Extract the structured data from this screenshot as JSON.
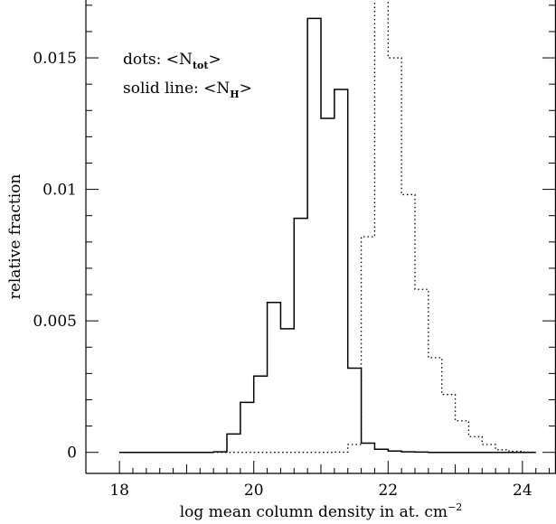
{
  "chart_data": {
    "type": "line",
    "title": "",
    "xlabel": "log mean column density in at. cm",
    "xlabel_superscript": "−2",
    "ylabel": "relative fraction",
    "xlim": [
      17.5,
      24.5
    ],
    "ylim": [
      -0.0008,
      0.0172
    ],
    "x_ticks": [
      18,
      20,
      22,
      24
    ],
    "x_tick_labels": [
      "18",
      "20",
      "22",
      "24"
    ],
    "y_ticks": [
      0,
      0.005,
      0.01,
      0.015
    ],
    "y_tick_labels": [
      "0",
      "0.005",
      "0.01",
      "0.015"
    ],
    "legend": {
      "position": "top-left",
      "dots_prefix": "dots: <N",
      "dots_sub": "tot",
      "dots_suffix": ">",
      "solid_prefix": "solid line: <N",
      "solid_sub": "H",
      "solid_suffix": ">"
    },
    "series": [
      {
        "style": "solid",
        "bin_width": 0.2,
        "bins_start": [
          18.0,
          18.2,
          18.4,
          18.6,
          18.8,
          19.0,
          19.2,
          19.4,
          19.6,
          19.8,
          20.0,
          20.2,
          20.4,
          20.6,
          20.8,
          21.0,
          21.2,
          21.4,
          21.6,
          21.8,
          22.0,
          22.2,
          22.4,
          22.6,
          22.8,
          23.0,
          23.2,
          23.4,
          23.6,
          23.8,
          24.0
        ],
        "values": [
          0,
          0,
          0,
          0,
          0,
          0,
          0,
          2e-05,
          0.0007,
          0.0019,
          0.0029,
          0.0057,
          0.0047,
          0.0089,
          0.0165,
          0.0127,
          0.0138,
          0.0032,
          0.00035,
          0.00012,
          5e-05,
          2e-05,
          1e-05,
          0,
          0,
          0,
          0,
          0,
          0,
          0,
          0
        ]
      },
      {
        "style": "dotted",
        "bin_width": 0.2,
        "bins_start": [
          18.0,
          18.2,
          18.4,
          18.6,
          18.8,
          19.0,
          19.2,
          19.4,
          19.6,
          19.8,
          20.0,
          20.2,
          20.4,
          20.6,
          20.8,
          21.0,
          21.2,
          21.4,
          21.6,
          21.8,
          22.0,
          22.2,
          22.4,
          22.6,
          22.8,
          23.0,
          23.2,
          23.4,
          23.6,
          23.8,
          24.0
        ],
        "values": [
          0,
          0,
          0,
          0,
          0,
          0,
          0,
          0,
          0,
          0,
          0,
          0,
          0,
          0,
          0,
          0,
          1e-05,
          0.0003,
          0.0082,
          0.02,
          0.015,
          0.0098,
          0.0062,
          0.0036,
          0.0022,
          0.0012,
          0.0006,
          0.0003,
          0.0001,
          4e-05,
          1e-05
        ]
      }
    ]
  }
}
